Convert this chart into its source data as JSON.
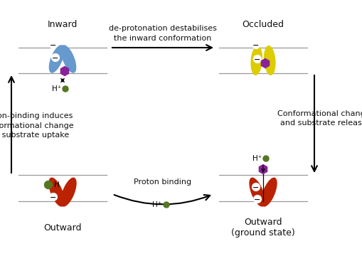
{
  "bg_color": "#ffffff",
  "blue_color": "#6699cc",
  "yellow_color": "#ddcc00",
  "red_color": "#bb2200",
  "purple_color": "#882299",
  "green_color": "#557722",
  "white_color": "#ffffff",
  "membrane_color": "#999999",
  "text_color": "#111111",
  "title_inward": "Inward",
  "title_occluded": "Occluded",
  "title_outward_left": "Outward",
  "title_outward_right": "Outward\n(ground state)",
  "arrow_top": "de-protonation destabilises\nthe inward conformation",
  "arrow_left": "Proton-binding induces\nConformational change\nand substrate uptake",
  "arrow_right": "Conformational change\nand substrate release",
  "arrow_bottom": "Proton binding"
}
